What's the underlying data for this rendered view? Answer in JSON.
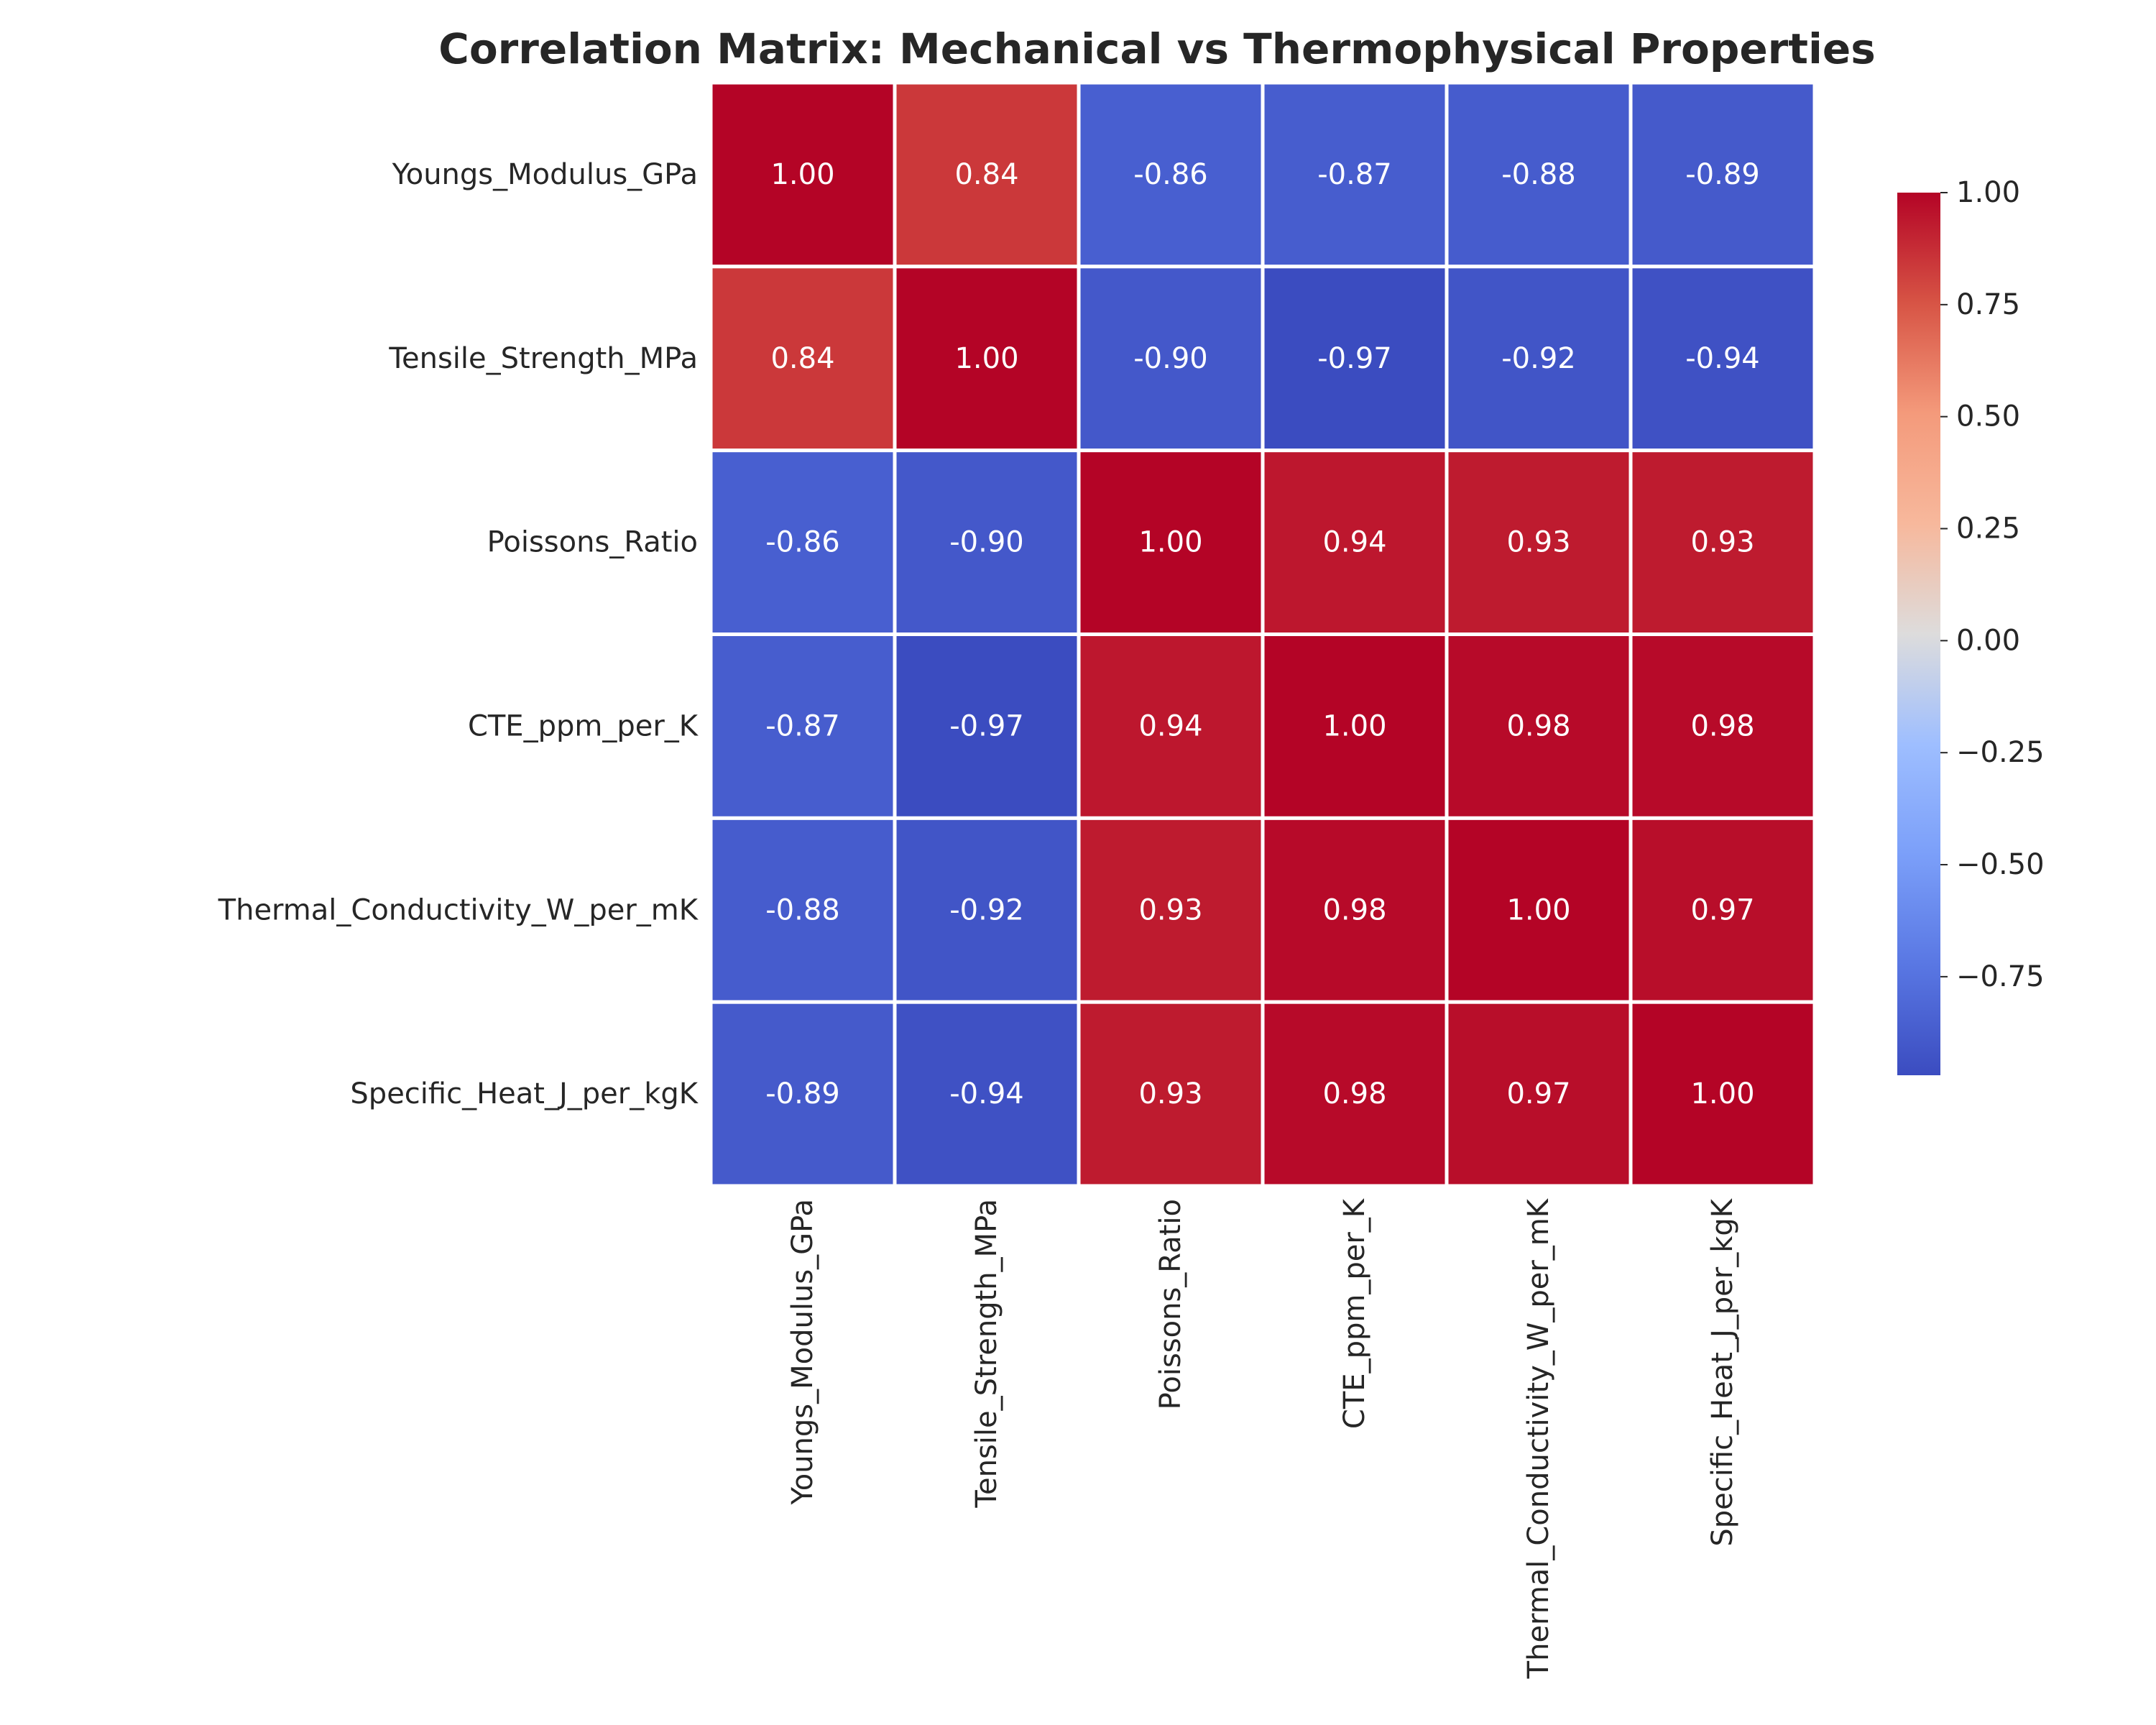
{
  "chart_data": {
    "type": "heatmap",
    "title": "Correlation Matrix: Mechanical vs Thermophysical Properties",
    "row_labels": [
      "Youngs_Modulus_GPa",
      "Tensile_Strength_MPa",
      "Poissons_Ratio",
      "CTE_ppm_per_K",
      "Thermal_Conductivity_W_per_mK",
      "Specific_Heat_J_per_kgK"
    ],
    "col_labels": [
      "Youngs_Modulus_GPa",
      "Tensile_Strength_MPa",
      "Poissons_Ratio",
      "CTE_ppm_per_K",
      "Thermal_Conductivity_W_per_mK",
      "Specific_Heat_J_per_kgK"
    ],
    "values": [
      [
        1.0,
        0.84,
        -0.86,
        -0.87,
        -0.88,
        -0.89
      ],
      [
        0.84,
        1.0,
        -0.9,
        -0.97,
        -0.92,
        -0.94
      ],
      [
        -0.86,
        -0.9,
        1.0,
        0.94,
        0.93,
        0.93
      ],
      [
        -0.87,
        -0.97,
        0.94,
        1.0,
        0.98,
        0.98
      ],
      [
        -0.88,
        -0.92,
        0.93,
        0.98,
        1.0,
        0.97
      ],
      [
        -0.89,
        -0.94,
        0.93,
        0.98,
        0.97,
        1.0
      ]
    ],
    "value_format": "2 decimals",
    "colormap": "coolwarm",
    "color_range": [
      -0.97,
      1.0
    ],
    "colorbar_ticks": [
      1.0,
      0.75,
      0.5,
      0.25,
      0.0,
      -0.25,
      -0.5,
      -0.75
    ],
    "colorbar_tick_labels": [
      "1.00",
      "0.75",
      "0.50",
      "0.25",
      "0.00",
      "−0.25",
      "−0.50",
      "−0.75"
    ],
    "grid_line_color": "#ffffff",
    "colormap_stops": [
      {
        "v": 0.0,
        "color": "#3b4cc0"
      },
      {
        "v": 0.125,
        "color": "#5977e3"
      },
      {
        "v": 0.25,
        "color": "#7b9ff9"
      },
      {
        "v": 0.375,
        "color": "#9ebeff"
      },
      {
        "v": 0.5,
        "color": "#dddcdc"
      },
      {
        "v": 0.625,
        "color": "#f7b89c"
      },
      {
        "v": 0.75,
        "color": "#f49a7b"
      },
      {
        "v": 0.875,
        "color": "#d75445"
      },
      {
        "v": 1.0,
        "color": "#b40426"
      }
    ]
  }
}
